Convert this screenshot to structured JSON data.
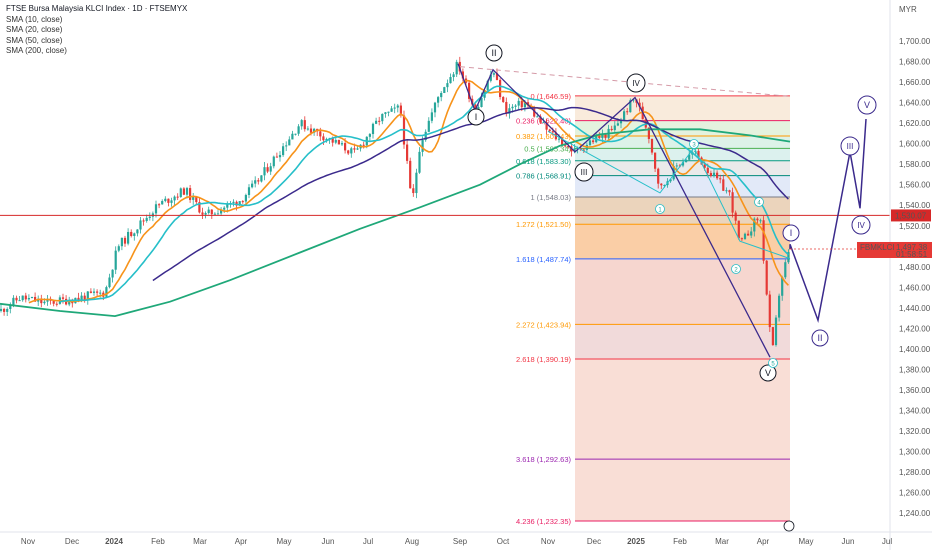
{
  "header": {
    "title": "FTSE Bursa Malaysia KLCI Index · 1D · FTSEMYX",
    "indicators": [
      "SMA (10, close)",
      "SMA (20, close)",
      "SMA (50, close)",
      "SMA (200, close)"
    ]
  },
  "price_axis": {
    "currency": "MYR",
    "ticks": [
      "1,240.00",
      "1,260.00",
      "1,280.00",
      "1,300.00",
      "1,320.00",
      "1,340.00",
      "1,360.00",
      "1,380.00",
      "1,400.00",
      "1,420.00",
      "1,440.00",
      "1,460.00",
      "1,480.00",
      "1,500.00",
      "1,520.00",
      "1,540.00",
      "1,560.00",
      "1,580.00",
      "1,600.00",
      "1,620.00",
      "1,640.00",
      "1,660.00",
      "1,680.00",
      "1,700.00"
    ],
    "hline_label": "1,530.07",
    "last_symbol": "FBMKLCI",
    "last_price": "1,497.38",
    "countdown": "01:58:51"
  },
  "time_axis": {
    "labels": [
      "Nov",
      "Dec",
      "2024",
      "Feb",
      "Mar",
      "Apr",
      "May",
      "Jun",
      "Jul",
      "Aug",
      "Sep",
      "Oct",
      "Nov",
      "Dec",
      "2025",
      "Feb",
      "Mar",
      "Apr",
      "May",
      "Jun",
      "Jul"
    ]
  },
  "fib_levels": [
    {
      "label": "0 (1,646.59)",
      "value": 1646.59,
      "color": "#f23645",
      "fill": "#fbd7d9"
    },
    {
      "label": "0.236 (1,622.40)",
      "value": 1622.4,
      "color": "#e91e63",
      "fill": "#f8e7d6"
    },
    {
      "label": "0.382 (1,607.43)",
      "value": 1607.43,
      "color": "#ff9800",
      "fill": "#dff0d8"
    },
    {
      "label": "0.5 (1,595.34)",
      "value": 1595.34,
      "color": "#4caf50",
      "fill": "#d7f0e4"
    },
    {
      "label": "0.618 (1,583.30)",
      "value": 1583.3,
      "color": "#089981",
      "fill": "#d6efeb"
    },
    {
      "label": "0.786 (1,568.91)",
      "value": 1568.91,
      "color": "#00897b",
      "fill": "#e6e6e6"
    },
    {
      "label": "1 (1,548.03)",
      "value": 1548.03,
      "color": "#787b86",
      "fill": "#dde5f7"
    },
    {
      "label": "1.272 (1,521.50)",
      "value": 1521.5,
      "color": "#ff9800",
      "fill": "#e8cdb0"
    },
    {
      "label": "1.618 (1,487.74)",
      "value": 1487.74,
      "color": "#2962ff",
      "fill": "#f9c596"
    },
    {
      "label": "2.272 (1,423.94)",
      "value": 1423.94,
      "color": "#ff9800",
      "fill": "#f5cfc7"
    },
    {
      "label": "2.618 (1,390.19)",
      "value": 1390.19,
      "color": "#f23645",
      "fill": "#eed3d3"
    },
    {
      "label": "3.618 (1,292.63)",
      "value": 1292.63,
      "color": "#9c27b0",
      "fill": "#f8d8cf"
    },
    {
      "label": "4.236 (1,232.35)",
      "value": 1232.35,
      "color": "#e91e63",
      "fill": "#f8d8cf"
    }
  ],
  "wave_labels": {
    "major": [
      "I",
      "II",
      "III",
      "IV",
      "V"
    ],
    "projection": [
      "I",
      "II",
      "III",
      "IV",
      "V"
    ],
    "minor": [
      "1",
      "2",
      "3",
      "4",
      "5"
    ]
  },
  "colors": {
    "sma10": "#f7931a",
    "sma20": "#26bfc9",
    "sma50": "#3b2a8c",
    "sma200": "#1fa879",
    "candle_up": "#26a69a",
    "candle_down": "#e53935",
    "hline": "#d62828",
    "projection": "#3b2a8c"
  },
  "chart_data": {
    "type": "candlestick",
    "title": "FTSE Bursa Malaysia KLCI Index · 1D · FTSEMYX",
    "ylabel": "MYR",
    "ylim": [
      1225,
      1715
    ],
    "x_labels": [
      "Nov",
      "Dec",
      "2024",
      "Feb",
      "Mar",
      "Apr",
      "May",
      "Jun",
      "Jul",
      "Aug",
      "Sep",
      "Oct",
      "Nov",
      "Dec",
      "2025",
      "Feb",
      "Mar",
      "Apr",
      "May",
      "Jun",
      "Jul"
    ],
    "price_path": [
      {
        "date": "Oct 2023",
        "close": 1437
      },
      {
        "date": "Nov 2023",
        "close": 1451
      },
      {
        "date": "Dec 2023",
        "close": 1452
      },
      {
        "date": "Jan 2024",
        "close": 1487
      },
      {
        "date": "Feb 2024",
        "close": 1545
      },
      {
        "date": "Mar 2024",
        "close": 1540
      },
      {
        "date": "Apr 2024",
        "close": 1565
      },
      {
        "date": "May 2024",
        "close": 1620
      },
      {
        "date": "Jun 2024",
        "close": 1595
      },
      {
        "date": "Jul 2024",
        "close": 1630
      },
      {
        "date": "Aug 2024",
        "close": 1600
      },
      {
        "date": "Sep 2024",
        "close": 1672
      },
      {
        "date": "Oct 2024",
        "close": 1630
      },
      {
        "date": "Nov 2024",
        "close": 1598
      },
      {
        "date": "Dec 2024",
        "close": 1610
      },
      {
        "date": "Jan 2025",
        "close": 1640
      },
      {
        "date": "Feb 2025",
        "close": 1575
      },
      {
        "date": "Mar 2025",
        "close": 1510
      },
      {
        "date": "Apr 2025",
        "close": 1390
      },
      {
        "date": "Apr 2025",
        "close": 1497.38
      }
    ],
    "horizontal_line": 1530.07,
    "last_price": 1497.38,
    "fib_extension": [
      1646.59,
      1622.4,
      1607.43,
      1595.34,
      1583.3,
      1568.91,
      1548.03,
      1521.5,
      1487.74,
      1423.94,
      1390.19,
      1292.63,
      1232.35
    ],
    "elliott_projection": [
      {
        "label": "I",
        "date": "Apr 2025",
        "value": 1502
      },
      {
        "label": "II",
        "date": "May 2025",
        "value": 1428
      },
      {
        "label": "III",
        "date": "Jun 2025",
        "value": 1592
      },
      {
        "label": "IV",
        "date": "Jun 2025",
        "value": 1537
      },
      {
        "label": "V",
        "date": "Jul 2025",
        "value": 1624
      }
    ]
  }
}
